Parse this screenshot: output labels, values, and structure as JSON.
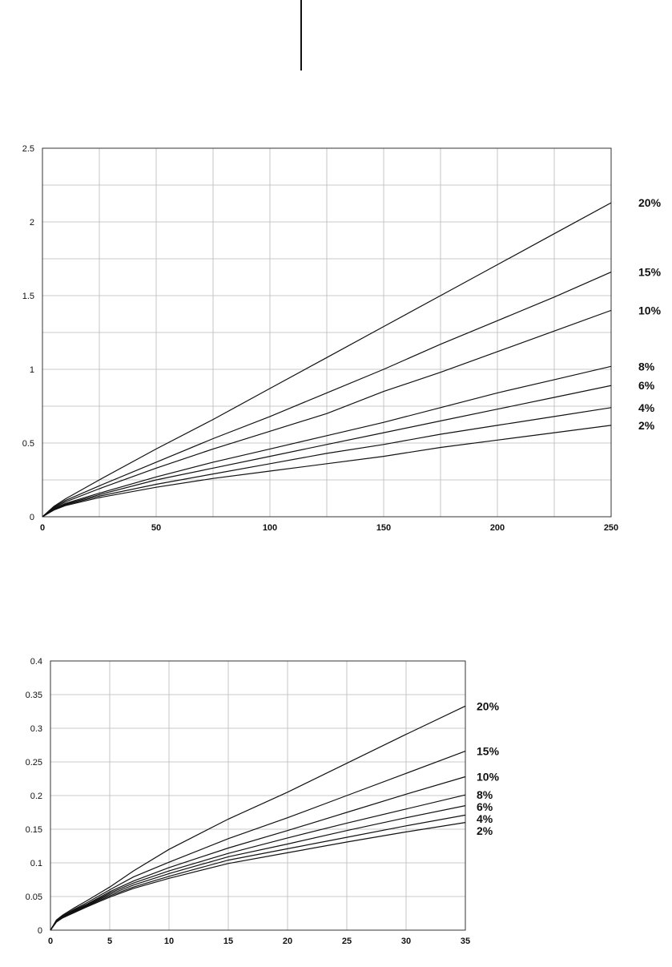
{
  "chart_data": [
    {
      "type": "line",
      "xlim": [
        0,
        250
      ],
      "ylim": [
        0,
        2.5
      ],
      "x_ticks": [
        "0",
        "50",
        "100",
        "150",
        "200",
        "250"
      ],
      "y_ticks": [
        "0",
        "0.5",
        "1",
        "1.5",
        "2",
        "2.5"
      ],
      "grid": true,
      "legend": "labels at right end of lines",
      "x": [
        0,
        5,
        10,
        25,
        50,
        75,
        100,
        125,
        150,
        175,
        200,
        225,
        250
      ],
      "series": [
        {
          "name": "20%",
          "values": [
            0,
            0.07,
            0.12,
            0.25,
            0.46,
            0.66,
            0.87,
            1.08,
            1.29,
            1.5,
            1.71,
            1.92,
            2.13
          ]
        },
        {
          "name": "15%",
          "values": [
            0,
            0.065,
            0.11,
            0.21,
            0.37,
            0.53,
            0.68,
            0.84,
            1.0,
            1.17,
            1.33,
            1.49,
            1.66
          ]
        },
        {
          "name": "10%",
          "values": [
            0,
            0.06,
            0.1,
            0.19,
            0.33,
            0.46,
            0.58,
            0.7,
            0.85,
            0.98,
            1.12,
            1.26,
            1.4
          ]
        },
        {
          "name": "8%",
          "values": [
            0,
            0.055,
            0.09,
            0.16,
            0.27,
            0.37,
            0.46,
            0.55,
            0.64,
            0.74,
            0.84,
            0.93,
            1.02
          ]
        },
        {
          "name": "6%",
          "values": [
            0,
            0.05,
            0.085,
            0.15,
            0.25,
            0.33,
            0.41,
            0.49,
            0.57,
            0.65,
            0.73,
            0.81,
            0.89
          ]
        },
        {
          "name": "4%",
          "values": [
            0,
            0.048,
            0.08,
            0.14,
            0.22,
            0.29,
            0.36,
            0.43,
            0.49,
            0.56,
            0.62,
            0.68,
            0.74
          ]
        },
        {
          "name": "2%",
          "values": [
            0,
            0.045,
            0.075,
            0.13,
            0.2,
            0.26,
            0.31,
            0.36,
            0.41,
            0.47,
            0.52,
            0.57,
            0.62
          ]
        }
      ]
    },
    {
      "type": "line",
      "xlim": [
        0,
        35
      ],
      "ylim": [
        0,
        0.4
      ],
      "x_ticks": [
        "0",
        "5",
        "10",
        "15",
        "20",
        "25",
        "30",
        "35"
      ],
      "y_ticks": [
        "0",
        "0.05",
        "0.1",
        "0.15",
        "0.2",
        "0.25",
        "0.3",
        "0.35",
        "0.4"
      ],
      "grid": true,
      "legend": "labels at right end of lines",
      "x": [
        0,
        0.5,
        1,
        2,
        3,
        5,
        7,
        10,
        15,
        20,
        25,
        30,
        35
      ],
      "series": [
        {
          "name": "20%",
          "values": [
            0,
            0.015,
            0.022,
            0.033,
            0.043,
            0.064,
            0.088,
            0.12,
            0.165,
            0.205,
            0.248,
            0.291,
            0.333
          ]
        },
        {
          "name": "15%",
          "values": [
            0,
            0.014,
            0.021,
            0.031,
            0.04,
            0.06,
            0.079,
            0.101,
            0.136,
            0.167,
            0.2,
            0.233,
            0.266
          ]
        },
        {
          "name": "10%",
          "values": [
            0,
            0.014,
            0.02,
            0.03,
            0.038,
            0.057,
            0.073,
            0.093,
            0.122,
            0.148,
            0.175,
            0.202,
            0.228
          ]
        },
        {
          "name": "8%",
          "values": [
            0,
            0.013,
            0.019,
            0.029,
            0.037,
            0.055,
            0.07,
            0.088,
            0.114,
            0.137,
            0.159,
            0.18,
            0.201
          ]
        },
        {
          "name": "6%",
          "values": [
            0,
            0.013,
            0.019,
            0.028,
            0.036,
            0.053,
            0.067,
            0.084,
            0.109,
            0.128,
            0.148,
            0.167,
            0.185
          ]
        },
        {
          "name": "4%",
          "values": [
            0,
            0.012,
            0.018,
            0.027,
            0.035,
            0.051,
            0.064,
            0.08,
            0.104,
            0.121,
            0.138,
            0.155,
            0.171
          ]
        },
        {
          "name": "2%",
          "values": [
            0,
            0.012,
            0.018,
            0.026,
            0.034,
            0.049,
            0.062,
            0.077,
            0.099,
            0.115,
            0.131,
            0.146,
            0.16
          ]
        }
      ]
    }
  ]
}
